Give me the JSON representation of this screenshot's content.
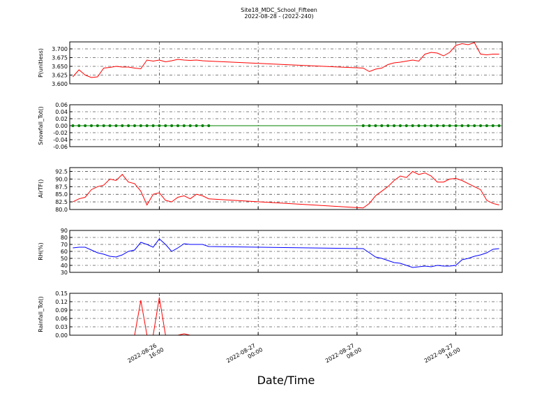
{
  "chart_data": {
    "title": "Site18_MDC_School_Fifteen",
    "subtitle": "2022-08-28 - (2022-240)",
    "x_label": "Date/Time",
    "x": [
      "2022-08-26 09:00",
      "2022-08-26 09:30",
      "2022-08-26 10:00",
      "2022-08-26 10:30",
      "2022-08-26 11:00",
      "2022-08-26 11:30",
      "2022-08-26 12:00",
      "2022-08-26 12:30",
      "2022-08-26 13:00",
      "2022-08-26 13:30",
      "2022-08-26 14:00",
      "2022-08-26 14:30",
      "2022-08-26 15:00",
      "2022-08-26 15:30",
      "2022-08-26 16:00",
      "2022-08-26 16:30",
      "2022-08-26 17:00",
      "2022-08-26 17:30",
      "2022-08-26 18:00",
      "2022-08-26 18:30",
      "2022-08-26 19:00",
      "2022-08-26 19:30",
      "2022-08-26 20:00",
      "2022-08-27 08:30",
      "2022-08-27 09:00",
      "2022-08-27 09:30",
      "2022-08-27 10:00",
      "2022-08-27 10:30",
      "2022-08-27 11:00",
      "2022-08-27 11:30",
      "2022-08-27 12:00",
      "2022-08-27 12:30",
      "2022-08-27 13:00",
      "2022-08-27 13:30",
      "2022-08-27 14:00",
      "2022-08-27 14:30",
      "2022-08-27 15:00",
      "2022-08-27 15:30",
      "2022-08-27 16:00",
      "2022-08-27 16:30",
      "2022-08-27 17:00",
      "2022-08-27 17:30",
      "2022-08-27 18:00",
      "2022-08-27 18:30",
      "2022-08-27 19:00",
      "2022-08-27 19:30"
    ],
    "xlim": [
      "2022-08-26 08:45",
      "2022-08-27 19:45"
    ],
    "xticks": [
      {
        "value": "2022-08-26 16:00",
        "label": "2022-08-26 16:00"
      },
      {
        "value": "2022-08-27 00:00",
        "label": "2022-08-27 00:00"
      },
      {
        "value": "2022-08-27 08:00",
        "label": "2022-08-27 08:00"
      },
      {
        "value": "2022-08-27 16:00",
        "label": "2022-08-27 16:00"
      }
    ],
    "grid": true,
    "panels": [
      {
        "type": "line",
        "y_label": "P(unitless)",
        "color": "#ff0000",
        "marker": false,
        "values": [
          3.62,
          3.64,
          3.625,
          3.618,
          3.62,
          3.645,
          3.647,
          3.65,
          3.648,
          3.648,
          3.645,
          3.643,
          3.668,
          3.665,
          3.668,
          3.663,
          3.666,
          3.67,
          3.668,
          3.667,
          3.668,
          3.666,
          3.665,
          3.645,
          3.635,
          3.642,
          3.645,
          3.655,
          3.66,
          3.662,
          3.665,
          3.668,
          3.665,
          3.685,
          3.69,
          3.688,
          3.68,
          3.69,
          3.71,
          3.715,
          3.712,
          3.718,
          3.685,
          3.683,
          3.685,
          3.685
        ],
        "ylim": [
          3.6,
          3.72
        ],
        "yticks": [
          {
            "value": 3.6,
            "label": "3.600"
          },
          {
            "value": 3.625,
            "label": "3.625"
          },
          {
            "value": 3.65,
            "label": "3.650"
          },
          {
            "value": 3.675,
            "label": "3.675"
          },
          {
            "value": 3.7,
            "label": "3.700"
          }
        ]
      },
      {
        "type": "line",
        "y_label": "Snowfall_Tot()",
        "color": "#008000",
        "marker": true,
        "values": [
          0,
          0,
          0,
          0,
          0,
          0,
          0,
          0,
          0,
          0,
          0,
          0,
          0,
          0,
          0,
          0,
          0,
          0,
          0,
          0,
          0,
          0,
          0,
          0,
          0,
          0,
          0,
          0,
          0,
          0,
          0,
          0,
          0,
          0,
          0,
          0,
          0,
          0,
          0,
          0,
          0,
          0,
          0,
          0,
          0,
          0
        ],
        "ylim": [
          -0.06,
          0.06
        ],
        "yticks": [
          -0.06,
          -0.04,
          -0.02,
          {
            "value": 0,
            "label": "0.00"
          },
          0.02,
          0.04,
          0.06
        ]
      },
      {
        "type": "line",
        "y_label": "AirTF()",
        "color": "#ff0000",
        "marker": false,
        "values": [
          82.5,
          83.5,
          84,
          86.5,
          87.5,
          88,
          90,
          89.5,
          91.5,
          89,
          88.5,
          86,
          81.5,
          85,
          85.5,
          83,
          82.5,
          84,
          84.5,
          83.5,
          85,
          84.5,
          83.5,
          80.5,
          82,
          84.5,
          86,
          87.5,
          89.5,
          91,
          90.5,
          92.5,
          91.5,
          92,
          91,
          89,
          89,
          90,
          90.2,
          89.5,
          88.5,
          87.5,
          86.5,
          83,
          82,
          81.5
        ],
        "ylim": [
          80,
          93.75
        ],
        "yticks": [
          {
            "value": 80,
            "label": "80.0"
          },
          82.5,
          {
            "value": 85,
            "label": "85.0"
          },
          87.5,
          {
            "value": 90,
            "label": "90.0"
          },
          92.5
        ]
      },
      {
        "type": "line",
        "y_label": "RH(%)",
        "color": "#0000ff",
        "marker": false,
        "values": [
          65,
          66,
          66,
          62,
          58,
          56,
          53,
          52,
          55,
          60,
          62,
          73,
          70,
          66,
          78,
          70,
          60,
          65,
          71,
          70,
          70,
          70,
          67,
          64,
          58,
          52,
          50,
          47,
          44,
          43,
          40,
          37,
          38,
          39,
          38,
          40,
          39,
          39,
          40,
          48,
          50,
          53,
          55,
          58,
          63,
          64
        ],
        "ylim": [
          30,
          90
        ],
        "yticks": [
          30,
          40,
          50,
          60,
          70,
          80,
          90
        ]
      },
      {
        "type": "line",
        "y_label": "Rainfall_Tot()",
        "color": "#ff0000",
        "marker": false,
        "values": [
          0,
          0,
          0,
          0,
          0,
          0,
          0,
          0,
          0,
          0,
          0,
          0.125,
          0,
          0,
          0.135,
          0,
          0,
          0,
          0.005,
          0,
          0,
          0,
          0,
          0,
          0,
          0,
          0,
          0,
          0,
          0,
          0,
          0,
          0,
          0,
          0,
          0,
          0,
          0,
          0,
          0,
          0,
          0,
          0,
          0,
          0,
          0
        ],
        "ylim": [
          0,
          0.15
        ],
        "yticks": [
          {
            "value": 0,
            "label": "0.00"
          },
          0.03,
          0.06,
          0.09,
          0.12,
          0.15
        ]
      }
    ]
  }
}
